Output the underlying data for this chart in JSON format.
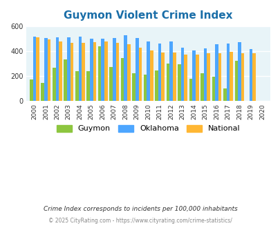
{
  "title": "Guymon Violent Crime Index",
  "years": [
    2000,
    2001,
    2002,
    2003,
    2004,
    2005,
    2006,
    2007,
    2008,
    2009,
    2010,
    2011,
    2012,
    2013,
    2014,
    2015,
    2016,
    2017,
    2018,
    2019,
    2020
  ],
  "guymon": [
    170,
    140,
    265,
    335,
    235,
    235,
    440,
    270,
    345,
    220,
    210,
    245,
    300,
    295,
    175,
    220,
    195,
    100,
    320,
    0,
    0
  ],
  "oklahoma": [
    515,
    505,
    510,
    510,
    515,
    500,
    500,
    505,
    530,
    505,
    480,
    460,
    475,
    430,
    405,
    420,
    455,
    460,
    470,
    415,
    0
  ],
  "national": [
    510,
    495,
    475,
    465,
    465,
    470,
    475,
    465,
    455,
    430,
    405,
    390,
    390,
    370,
    370,
    380,
    385,
    395,
    380,
    380,
    0
  ],
  "guymon_color": "#8dc63f",
  "oklahoma_color": "#4da6ff",
  "national_color": "#ffb733",
  "bg_color": "#e8f4f8",
  "title_color": "#1a6ea8",
  "ylabel_max": 600,
  "yticks": [
    0,
    200,
    400,
    600
  ],
  "subtitle": "Crime Index corresponds to incidents per 100,000 inhabitants",
  "footer": "© 2025 CityRating.com - https://www.cityrating.com/crime-statistics/",
  "subtitle_color": "#333333",
  "footer_color": "#888888"
}
